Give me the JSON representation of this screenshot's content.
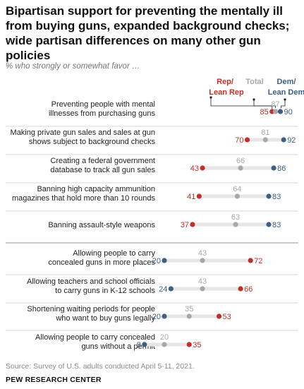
{
  "title": "Bipartisan support for preventing the mentally ill from buying guns, expanded background checks; wide partisan differences on many other gun policies",
  "subtitle": "% who strongly or somewhat favor …",
  "source": "Source: Survey of U.S. adults conducted April 5-11, 2021.",
  "credit": "PEW RESEARCH CENTER",
  "chart_data": {
    "type": "dot",
    "xlim": [
      0,
      100
    ],
    "legend": {
      "rep": [
        "Rep/",
        "Lean Rep"
      ],
      "total": [
        "Total"
      ],
      "dem": [
        "Dem/",
        "Lean Dem"
      ]
    },
    "colors": {
      "rep": "#c0302b",
      "total": "#a8a8a8",
      "dem": "#3f5e83",
      "bar": "#e6e6e6"
    },
    "series": [
      {
        "key": "rep",
        "name": "Rep/Lean Rep"
      },
      {
        "key": "total",
        "name": "Total"
      },
      {
        "key": "dem",
        "name": "Dem/Lean Dem"
      }
    ],
    "groups": [
      [
        {
          "label": [
            "Preventing people with mental",
            "illnesses from purchasing guns"
          ],
          "rep": 85,
          "total": 87,
          "dem": 90
        },
        {
          "label": [
            "Making private gun sales and sales at gun",
            "shows subject to background checks"
          ],
          "rep": 70,
          "total": 81,
          "dem": 92
        },
        {
          "label": [
            "Creating a federal government",
            "database to track all gun sales"
          ],
          "rep": 43,
          "total": 66,
          "dem": 86
        },
        {
          "label": [
            "Banning high capacity ammunition",
            "magazines that hold more than 10 rounds"
          ],
          "rep": 41,
          "total": 64,
          "dem": 83
        },
        {
          "label": [
            "Banning assault-style weapons"
          ],
          "rep": 37,
          "total": 63,
          "dem": 83
        }
      ],
      [
        {
          "label": [
            "Allowing people to carry",
            "concealed guns in more places"
          ],
          "rep": 72,
          "total": 43,
          "dem": 20
        },
        {
          "label": [
            "Allowing teachers and school officials",
            "to carry guns in K-12 schools"
          ],
          "rep": 66,
          "total": 43,
          "dem": 24
        },
        {
          "label": [
            "Shortening waiting periods for people",
            "who want to buy guns legally"
          ],
          "rep": 53,
          "total": 35,
          "dem": 20
        },
        {
          "label": [
            "Allowing people to carry concealed",
            "guns without a permit"
          ],
          "rep": 35,
          "total": 20,
          "dem": 8
        }
      ]
    ]
  }
}
